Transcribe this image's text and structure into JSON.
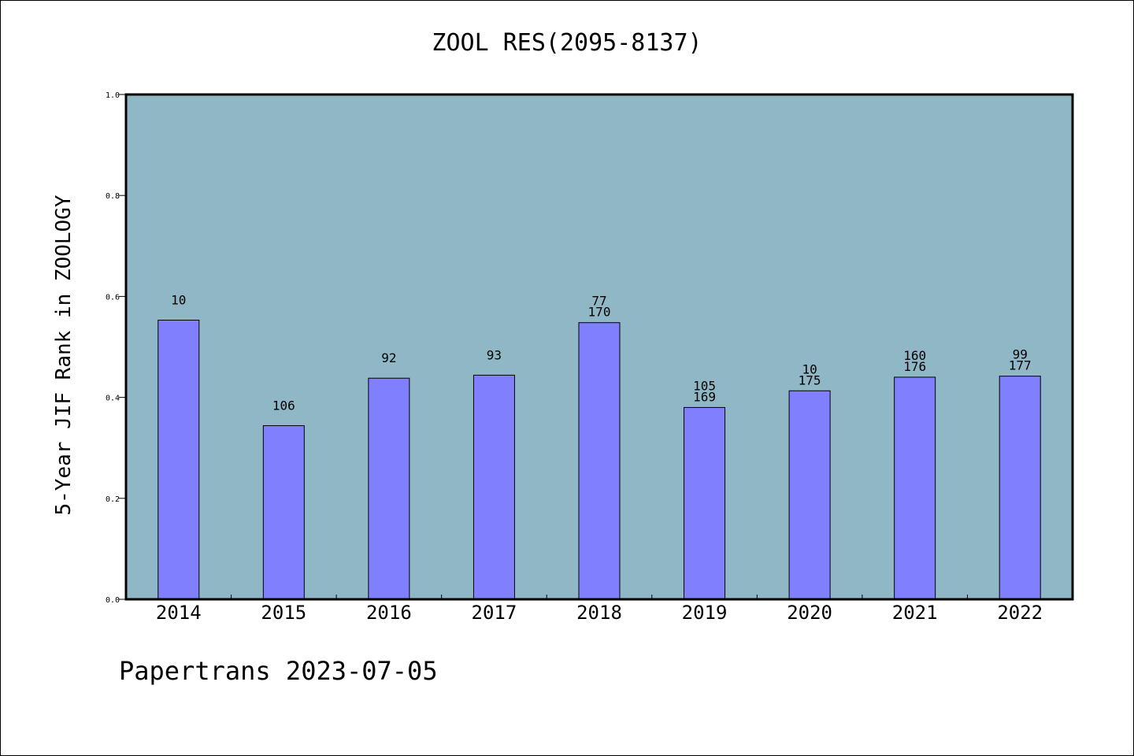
{
  "chart_data": {
    "type": "bar",
    "title": "ZOOL RES(2095-8137)",
    "xlabel": "",
    "ylabel": "5-Year JIF Rank in ZOOLOGY",
    "categories": [
      "2014",
      "2015",
      "2016",
      "2017",
      "2018",
      "2019",
      "2020",
      "2021",
      "2022"
    ],
    "values": [
      0.553,
      0.344,
      0.438,
      0.444,
      0.548,
      0.38,
      0.413,
      0.44,
      0.442
    ],
    "bar_labels": [
      [
        "10"
      ],
      [
        "106"
      ],
      [
        "92"
      ],
      [
        "93"
      ],
      [
        "77",
        "170"
      ],
      [
        "105",
        "169"
      ],
      [
        "10",
        "175"
      ],
      [
        "160",
        "176"
      ],
      [
        "99",
        "177"
      ]
    ],
    "ylim": [
      0,
      1.0
    ],
    "yticks": [
      "0.0",
      "0.2",
      "0.4",
      "0.6",
      "0.8",
      "1.0"
    ],
    "grid": false,
    "colors": {
      "plot_background": "#8fb7c6",
      "bar_fill": "#8080ff",
      "bar_stroke": "#000000"
    }
  },
  "footer": "Papertrans 2023-07-05"
}
